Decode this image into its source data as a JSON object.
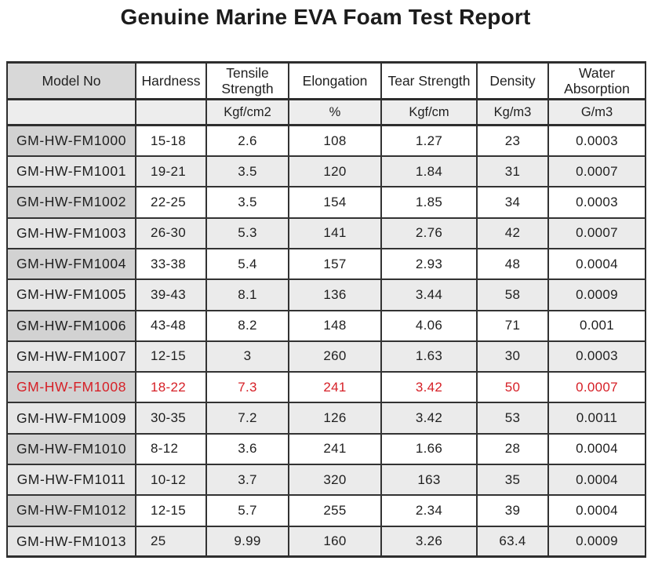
{
  "page_title": "Genuine Marine EVA Foam Test Report",
  "colors": {
    "highlight_red": "#d61f26",
    "header_model_bg": "#d8d8d8",
    "model_cell_dark_bg": "#d2d2d2",
    "stripe_light_bg": "#ebebeb",
    "units_row_bg": "#ededed",
    "border": "#333333",
    "text": "#1f1f1f"
  },
  "table": {
    "columns": [
      {
        "label": "Model No",
        "unit": ""
      },
      {
        "label": "Hardness",
        "unit": ""
      },
      {
        "label": "Tensile Strength",
        "unit": "Kgf/cm2"
      },
      {
        "label": "Elongation",
        "unit": "%"
      },
      {
        "label": "Tear Strength",
        "unit": "Kgf/cm"
      },
      {
        "label": "Density",
        "unit": "Kg/m3"
      },
      {
        "label": "Water Absorption",
        "unit": "G/m3"
      }
    ],
    "rows": [
      {
        "model": "GM-HW-FM1000",
        "values": [
          "15-18",
          "2.6",
          "108",
          "1.27",
          "23",
          "0.0003"
        ],
        "highlight": false
      },
      {
        "model": "GM-HW-FM1001",
        "values": [
          "19-21",
          "3.5",
          "120",
          "1.84",
          "31",
          "0.0007"
        ],
        "highlight": false
      },
      {
        "model": "GM-HW-FM1002",
        "values": [
          "22-25",
          "3.5",
          "154",
          "1.85",
          "34",
          "0.0003"
        ],
        "highlight": false
      },
      {
        "model": "GM-HW-FM1003",
        "values": [
          "26-30",
          "5.3",
          "141",
          "2.76",
          "42",
          "0.0007"
        ],
        "highlight": false
      },
      {
        "model": "GM-HW-FM1004",
        "values": [
          "33-38",
          "5.4",
          "157",
          "2.93",
          "48",
          "0.0004"
        ],
        "highlight": false
      },
      {
        "model": "GM-HW-FM1005",
        "values": [
          "39-43",
          "8.1",
          "136",
          "3.44",
          "58",
          "0.0009"
        ],
        "highlight": false
      },
      {
        "model": "GM-HW-FM1006",
        "values": [
          "43-48",
          "8.2",
          "148",
          "4.06",
          "71",
          "0.001"
        ],
        "highlight": false
      },
      {
        "model": "GM-HW-FM1007",
        "values": [
          "12-15",
          "3",
          "260",
          "1.63",
          "30",
          "0.0003"
        ],
        "highlight": false
      },
      {
        "model": "GM-HW-FM1008",
        "values": [
          "18-22",
          "7.3",
          "241",
          "3.42",
          "50",
          "0.0007"
        ],
        "highlight": true
      },
      {
        "model": "GM-HW-FM1009",
        "values": [
          "30-35",
          "7.2",
          "126",
          "3.42",
          "53",
          "0.0011"
        ],
        "highlight": false
      },
      {
        "model": "GM-HW-FM1010",
        "values": [
          "8-12",
          "3.6",
          "241",
          "1.66",
          "28",
          "0.0004"
        ],
        "highlight": false
      },
      {
        "model": "GM-HW-FM1011",
        "values": [
          "10-12",
          "3.7",
          "320",
          "163",
          "35",
          "0.0004"
        ],
        "highlight": false
      },
      {
        "model": "GM-HW-FM1012",
        "values": [
          "12-15",
          "5.7",
          "255",
          "2.34",
          "39",
          "0.0004"
        ],
        "highlight": false
      },
      {
        "model": "GM-HW-FM1013",
        "values": [
          "25",
          "9.99",
          "160",
          "3.26",
          "63.4",
          "0.0009"
        ],
        "highlight": false
      }
    ]
  }
}
